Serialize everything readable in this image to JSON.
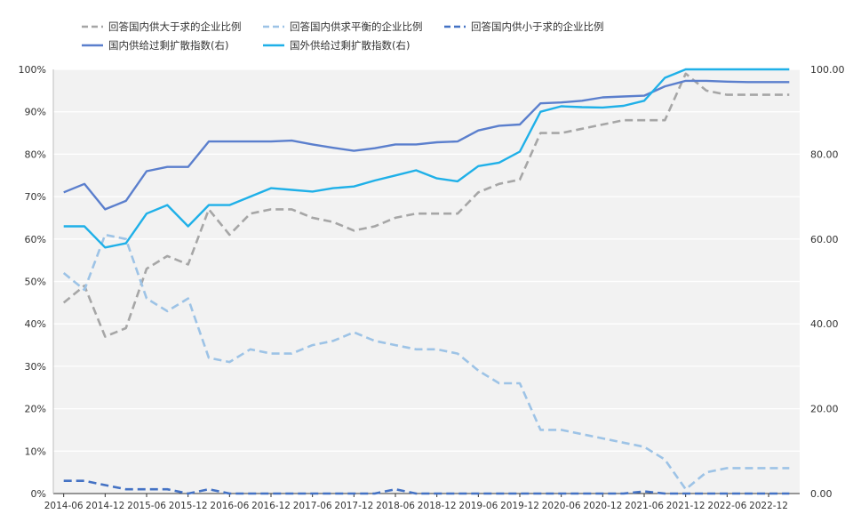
{
  "chart_data": {
    "type": "line",
    "title": "",
    "xlabel": "",
    "ylabel": "",
    "x_tick_labels": [
      "2014-06",
      "2014-12",
      "2015-06",
      "2015-12",
      "2016-06",
      "2016-12",
      "2017-06",
      "2017-12",
      "2018-06",
      "2018-12",
      "2019-06",
      "2019-12",
      "2020-06",
      "2020-12",
      "2021-06",
      "2021-12",
      "2022-06",
      "2022-12"
    ],
    "x": [
      "2014-06",
      "2014-09",
      "2014-12",
      "2015-03",
      "2015-06",
      "2015-09",
      "2015-12",
      "2016-03",
      "2016-06",
      "2016-09",
      "2016-12",
      "2017-03",
      "2017-06",
      "2017-09",
      "2017-12",
      "2018-03",
      "2018-06",
      "2018-09",
      "2018-12",
      "2019-03",
      "2019-06",
      "2019-09",
      "2019-12",
      "2020-03",
      "2020-06",
      "2020-09",
      "2020-12",
      "2021-03",
      "2021-06",
      "2021-09",
      "2021-12",
      "2022-03",
      "2022-06",
      "2022-09",
      "2022-12",
      "2023-03"
    ],
    "y_left_ticks": [
      "0%",
      "10%",
      "20%",
      "30%",
      "40%",
      "50%",
      "60%",
      "70%",
      "80%",
      "90%",
      "100%"
    ],
    "y_right_ticks": [
      "0.00",
      "20.00",
      "40.00",
      "60.00",
      "80.00",
      "100.00"
    ],
    "ylim_left": [
      0,
      100
    ],
    "ylim_right": [
      0,
      100
    ],
    "grid": true,
    "legend_position": "top-left",
    "series": [
      {
        "name": "回答国内供大于求的企业比例",
        "axis": "left",
        "style": "dashed",
        "color": "#a6a6a6",
        "values": [
          45,
          49,
          37,
          39,
          53,
          56,
          54,
          67,
          61,
          66,
          67,
          67,
          65,
          64,
          62,
          63,
          65,
          66,
          66,
          66,
          71,
          73,
          74,
          85,
          85,
          86,
          87,
          88,
          88,
          88,
          99,
          95,
          94,
          94,
          94,
          94
        ]
      },
      {
        "name": "回答国内供求平衡的企业比例",
        "axis": "left",
        "style": "dashed",
        "color": "#9dc3e6",
        "values": [
          52,
          48,
          61,
          60,
          46,
          43,
          46,
          32,
          31,
          34,
          33,
          33,
          35,
          36,
          38,
          36,
          35,
          34,
          34,
          33,
          29,
          26,
          26,
          15,
          15,
          14,
          13,
          12,
          11,
          8,
          1,
          5,
          6,
          6,
          6,
          6
        ]
      },
      {
        "name": "回答国内供小于求的企业比例",
        "axis": "left",
        "style": "dashed",
        "color": "#4472c4",
        "values": [
          3,
          3,
          2,
          1,
          1,
          1,
          0,
          1,
          0,
          0,
          0,
          0,
          0,
          0,
          0,
          0,
          1,
          0,
          0,
          0,
          0,
          0,
          0,
          0,
          0,
          0,
          0,
          0,
          0.5,
          0,
          0,
          0,
          0,
          0,
          0,
          0
        ]
      },
      {
        "name": "国内供给过剩扩散指数(右)",
        "axis": "right",
        "style": "solid",
        "color": "#5b7fcd",
        "values": [
          71,
          73,
          67,
          69,
          76,
          77,
          77,
          83,
          83,
          83,
          83,
          83.2,
          82.3,
          81.5,
          80.8,
          81.4,
          82.3,
          82.3,
          82.8,
          83,
          85.6,
          86.7,
          87,
          92,
          92.2,
          92.6,
          93.4,
          93.6,
          93.8,
          96,
          97.3,
          97.3,
          97.1,
          97,
          97,
          97
        ]
      },
      {
        "name": "国外供给过剩扩散指数(右)",
        "axis": "right",
        "style": "solid",
        "color": "#1fb0e8",
        "values": [
          63,
          63,
          58,
          59,
          66,
          68,
          63,
          68,
          68,
          70,
          72,
          71.6,
          71.2,
          72,
          72.4,
          73.8,
          75,
          76.2,
          74.3,
          73.6,
          77.2,
          78,
          80.6,
          90,
          91.3,
          91.1,
          91,
          91.4,
          92.6,
          98,
          100,
          100,
          100,
          100,
          100,
          100
        ]
      }
    ]
  },
  "legend": {
    "row1": [
      "回答国内供大于求的企业比例",
      "回答国内供求平衡的企业比例",
      "回答国内供小于求的企业比例"
    ],
    "row2": [
      "国内供给过剩扩散指数(右)",
      "国外供给过剩扩散指数(右)"
    ]
  }
}
